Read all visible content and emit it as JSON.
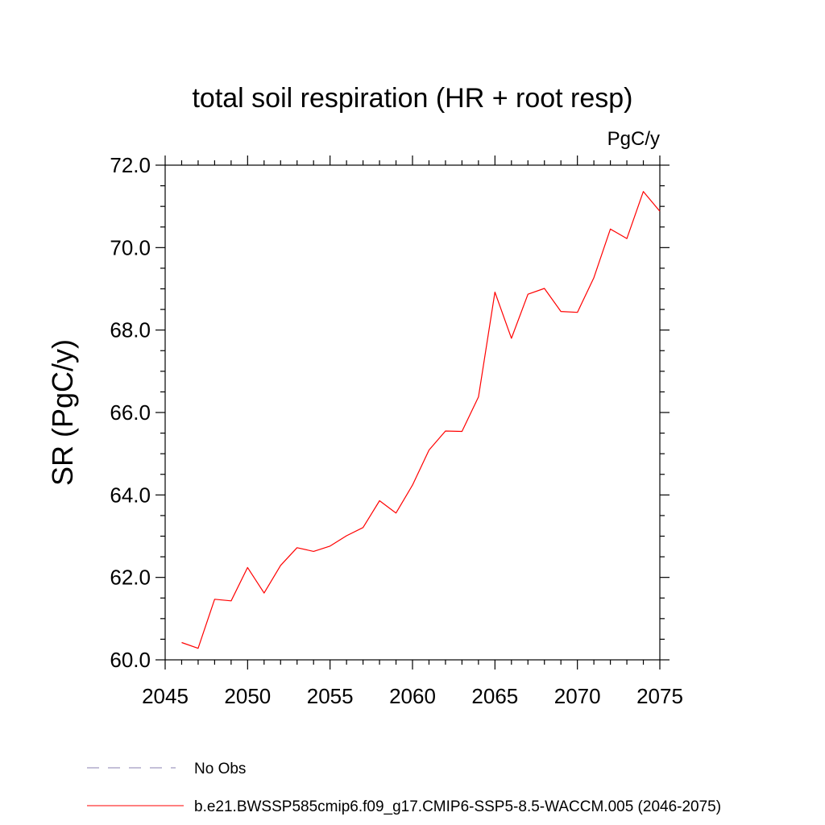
{
  "chart_data": {
    "type": "line",
    "title": "total soil respiration (HR + root resp)",
    "units_label": "PgC/y",
    "ylabel": "SR  (PgC/y)",
    "xlabel": "",
    "xlim": [
      2045,
      2075
    ],
    "ylim": [
      60.0,
      72.0
    ],
    "x_ticks": [
      2045,
      2050,
      2055,
      2060,
      2065,
      2070,
      2075
    ],
    "x_tick_labels": [
      "2045",
      "2050",
      "2055",
      "2060",
      "2065",
      "2070",
      "2075"
    ],
    "y_ticks": [
      60,
      62,
      64,
      66,
      68,
      70,
      72
    ],
    "y_tick_labels": [
      "60.0",
      "62.0",
      "64.0",
      "66.0",
      "68.0",
      "70.0",
      "72.0"
    ],
    "grid": false,
    "legend_position": "bottom",
    "series": [
      {
        "name": "b.e21.BWSSP585cmip6.f09_g17.CMIP6-SSP5-8.5-WACCM.005 (2046-2075)",
        "color": "#ff0000",
        "style": "solid",
        "x": [
          2046,
          2047,
          2048,
          2049,
          2050,
          2051,
          2052,
          2053,
          2054,
          2055,
          2056,
          2057,
          2058,
          2059,
          2060,
          2061,
          2062,
          2063,
          2064,
          2065,
          2066,
          2067,
          2068,
          2069,
          2070,
          2071,
          2072,
          2073,
          2074,
          2075
        ],
        "y": [
          60.42,
          60.28,
          61.47,
          61.43,
          62.24,
          61.62,
          62.29,
          62.72,
          62.63,
          62.76,
          63.01,
          63.21,
          63.86,
          63.56,
          64.24,
          65.09,
          65.55,
          65.54,
          66.38,
          68.92,
          67.8,
          68.87,
          69.01,
          68.45,
          68.43,
          69.27,
          70.45,
          70.22,
          71.36,
          70.88
        ]
      }
    ],
    "legend": [
      {
        "label": "No Obs",
        "color": "#8a80b0",
        "style": "dashed"
      },
      {
        "label": "b.e21.BWSSP585cmip6.f09_g17.CMIP6-SSP5-8.5-WACCM.005 (2046-2075)",
        "color": "#ff0000",
        "style": "solid"
      }
    ]
  }
}
